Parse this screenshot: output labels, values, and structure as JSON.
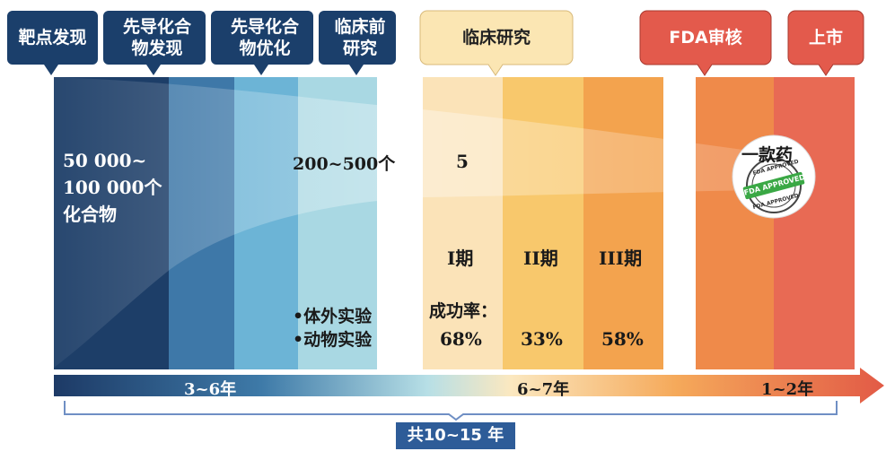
{
  "phases": [
    {
      "label": "靶点发现"
    },
    {
      "label": "先导化合\n物发现"
    },
    {
      "label": "先导化合\n物优化"
    },
    {
      "label": "临床前\n研究"
    },
    {
      "label": "临床研究"
    },
    {
      "label": "FDA审核"
    },
    {
      "label": "上市"
    }
  ],
  "counts": {
    "compounds": "50 000~\n100 000个\n化合物",
    "preclinical": "200~500个",
    "clinical": "5",
    "final": "一款药"
  },
  "preclinical_methods": [
    "•体外实验",
    "•动物实验"
  ],
  "clinical_trials": {
    "phases": [
      "I期",
      "II期",
      "III期"
    ],
    "success_label": "成功率：",
    "success_rates": [
      "68%",
      "33%",
      "58%"
    ]
  },
  "seal": {
    "text_top": "FDA APPROVED",
    "ribbon": "FDA APPROVED",
    "text_bottom": "FDA APPROVED"
  },
  "timeline": {
    "segments": [
      "3~6年",
      "6~7年",
      "1~2年"
    ],
    "total": "共10~15 年"
  },
  "colors": {
    "navy": "#1b3f6b",
    "col1": "#1d3e68",
    "col2": "#3e78a8",
    "col3": "#6cb4d6",
    "col4": "#a9d8e3",
    "col5": "#fbe3b8",
    "col6": "#f8c86c",
    "col7": "#f3a34e",
    "col8": "#ef8a4a",
    "col9": "#e86a54",
    "clinical_tag": "#fbe6b3",
    "fda_tag": "#e35a4c",
    "brace": "#6f8fc4",
    "total_box": "#2e5c98"
  }
}
